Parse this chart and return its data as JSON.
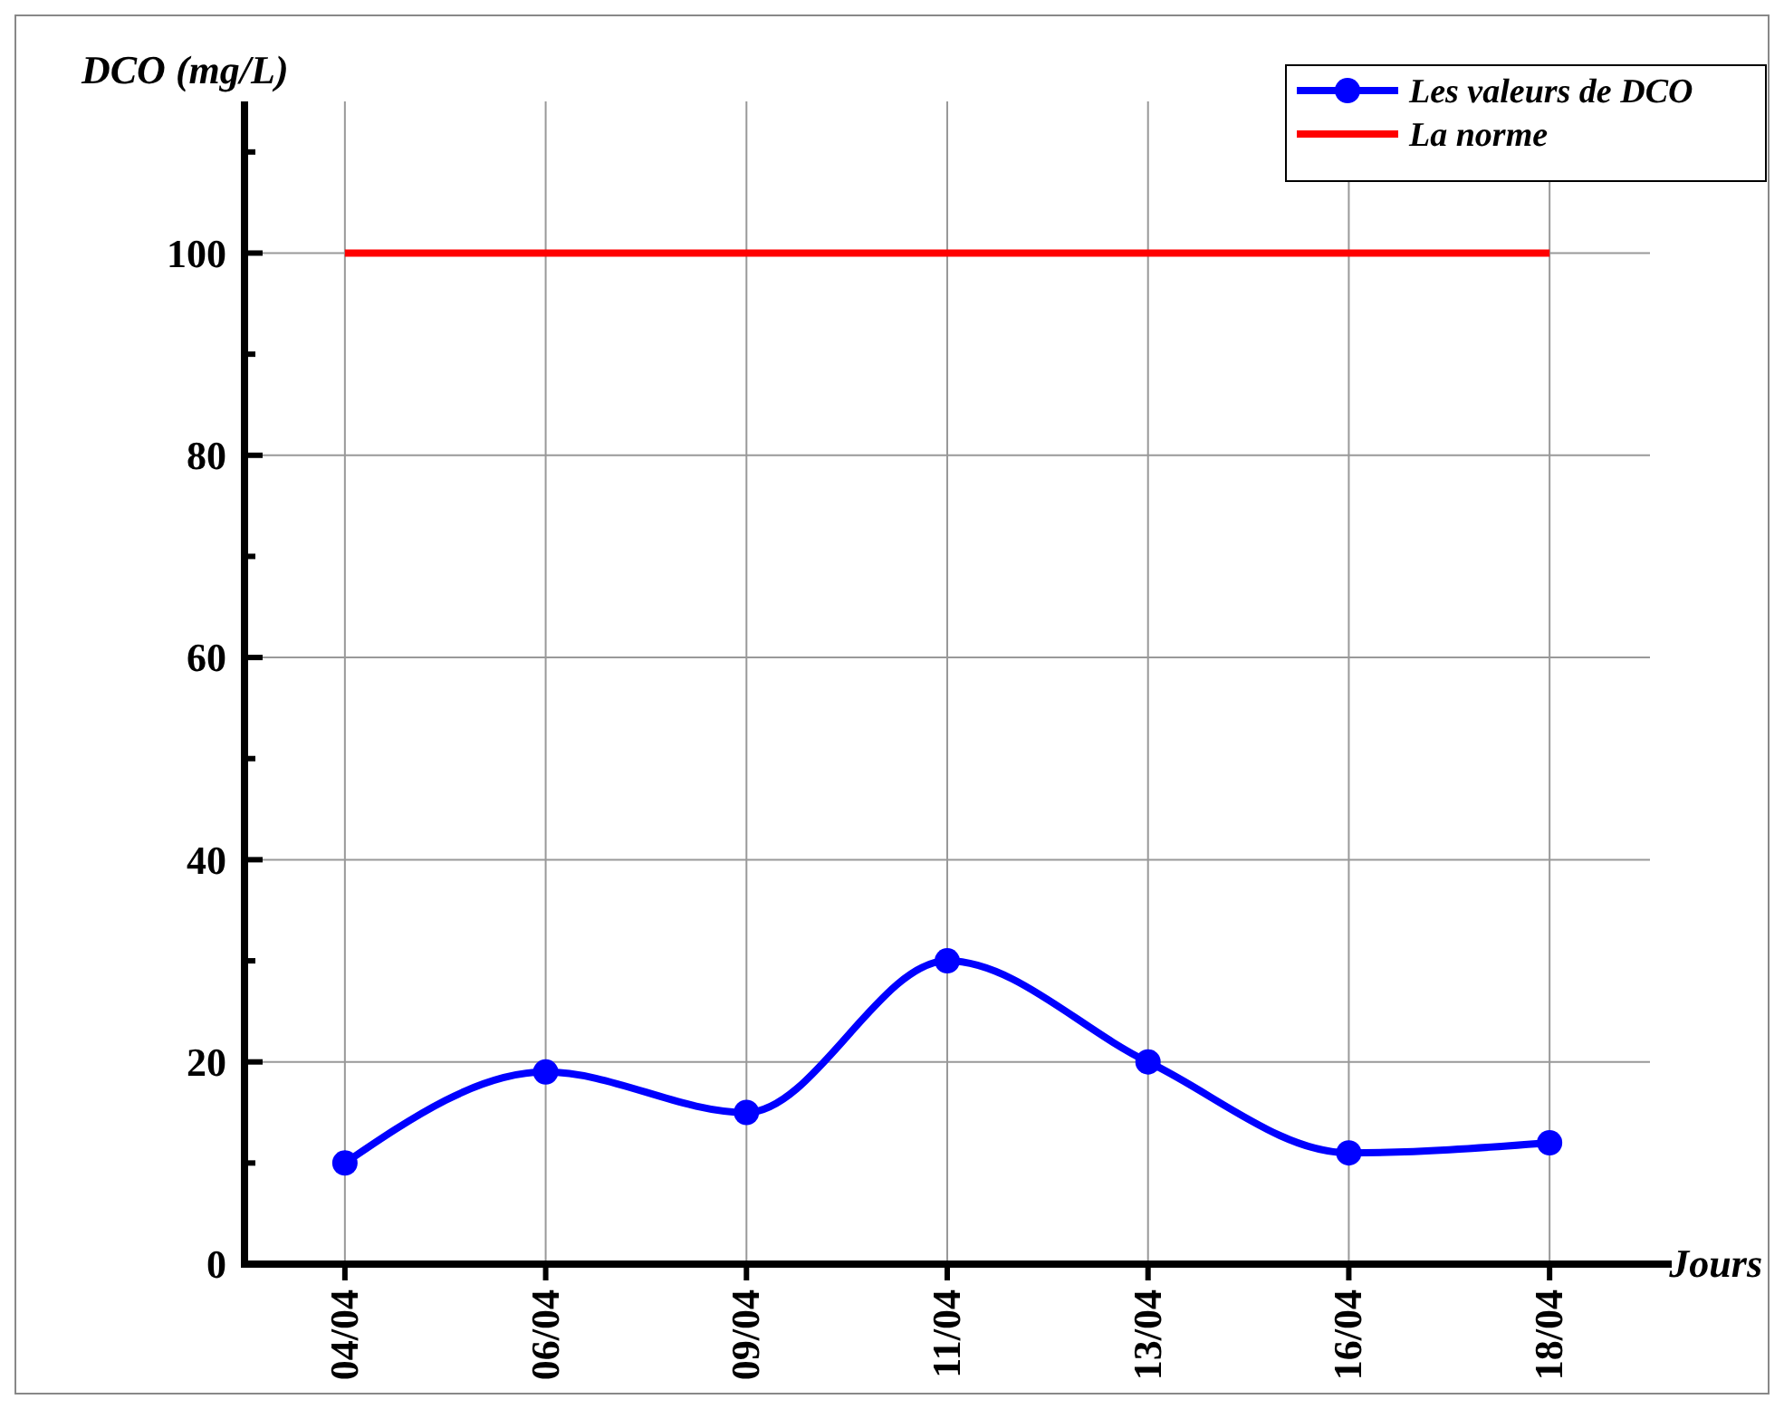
{
  "chart_data": {
    "type": "line",
    "xlabel": "Jours",
    "ylabel": "DCO (mg/L)",
    "categories": [
      "04/04",
      "06/04",
      "09/04",
      "11/04",
      "13/04",
      "16/04",
      "18/04"
    ],
    "series": [
      {
        "name": "Les valeurs de DCO",
        "color": "#0000ff",
        "values": [
          10,
          19,
          15,
          30,
          20,
          11,
          12
        ],
        "marker": "circle"
      },
      {
        "name": "La norme",
        "color": "#ff0000",
        "values": [
          100,
          100,
          100,
          100,
          100,
          100,
          100
        ],
        "marker": "none"
      }
    ],
    "ylim": [
      0,
      115
    ],
    "yticks": [
      0,
      {
        "value": 10,
        "label": null
      },
      20,
      {
        "value": 30,
        "label": null
      },
      40,
      {
        "value": 50,
        "label": null
      },
      60,
      {
        "value": 70,
        "label": null
      },
      80,
      {
        "value": 90,
        "label": null
      },
      100,
      {
        "value": 110,
        "label": null
      }
    ],
    "grid": true,
    "legend": "top right",
    "line_style": "solid"
  }
}
